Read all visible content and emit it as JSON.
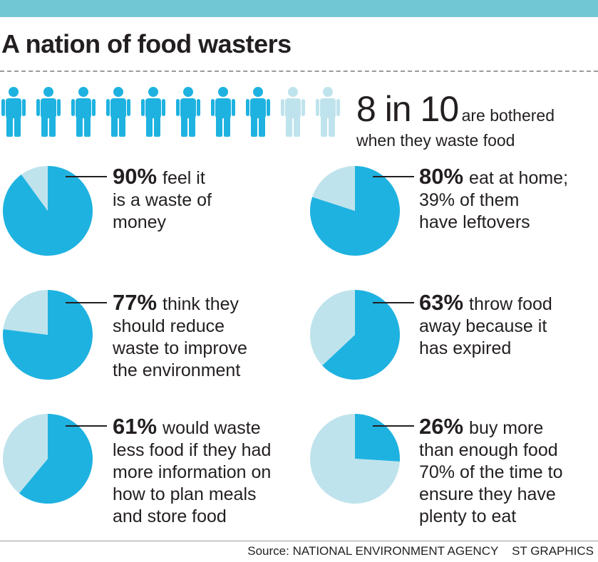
{
  "title": "A nation of food wasters",
  "colors": {
    "filled": "#1eb2e0",
    "remainder": "#bfe3ec",
    "top_bar": "#72c7d4"
  },
  "people_icons": {
    "total": 10,
    "highlighted": 8,
    "icon": "person-icon"
  },
  "headline_stat": {
    "number": "8 in 10",
    "text1": "are bothered",
    "text2": "when they waste food"
  },
  "chart_data": [
    {
      "type": "pie",
      "label": "90%",
      "values": [
        90,
        10
      ],
      "lines": [
        "feel it",
        "is a waste of",
        "money"
      ]
    },
    {
      "type": "pie",
      "label": "80%",
      "values": [
        80,
        20
      ],
      "lines": [
        "eat at home;",
        "39% of them",
        "have leftovers"
      ]
    },
    {
      "type": "pie",
      "label": "77%",
      "values": [
        77,
        23
      ],
      "lines": [
        "think they",
        "should reduce",
        "waste to improve",
        "the environment"
      ]
    },
    {
      "type": "pie",
      "label": "63%",
      "values": [
        63,
        37
      ],
      "lines": [
        "throw food",
        "away because it",
        "has expired"
      ]
    },
    {
      "type": "pie",
      "label": "61%",
      "values": [
        61,
        39
      ],
      "lines": [
        "would waste",
        "less food if they had",
        "more information on",
        "how to plan meals",
        "and store food"
      ]
    },
    {
      "type": "pie",
      "label": "26%",
      "values": [
        26,
        74
      ],
      "lines": [
        "buy more",
        "than enough food",
        "70% of the time to",
        "ensure they have",
        "plenty to eat"
      ]
    }
  ],
  "source": {
    "label": "Source:",
    "agency": "NATIONAL ENVIRONMENT AGENCY",
    "credit": "ST GRAPHICS"
  }
}
